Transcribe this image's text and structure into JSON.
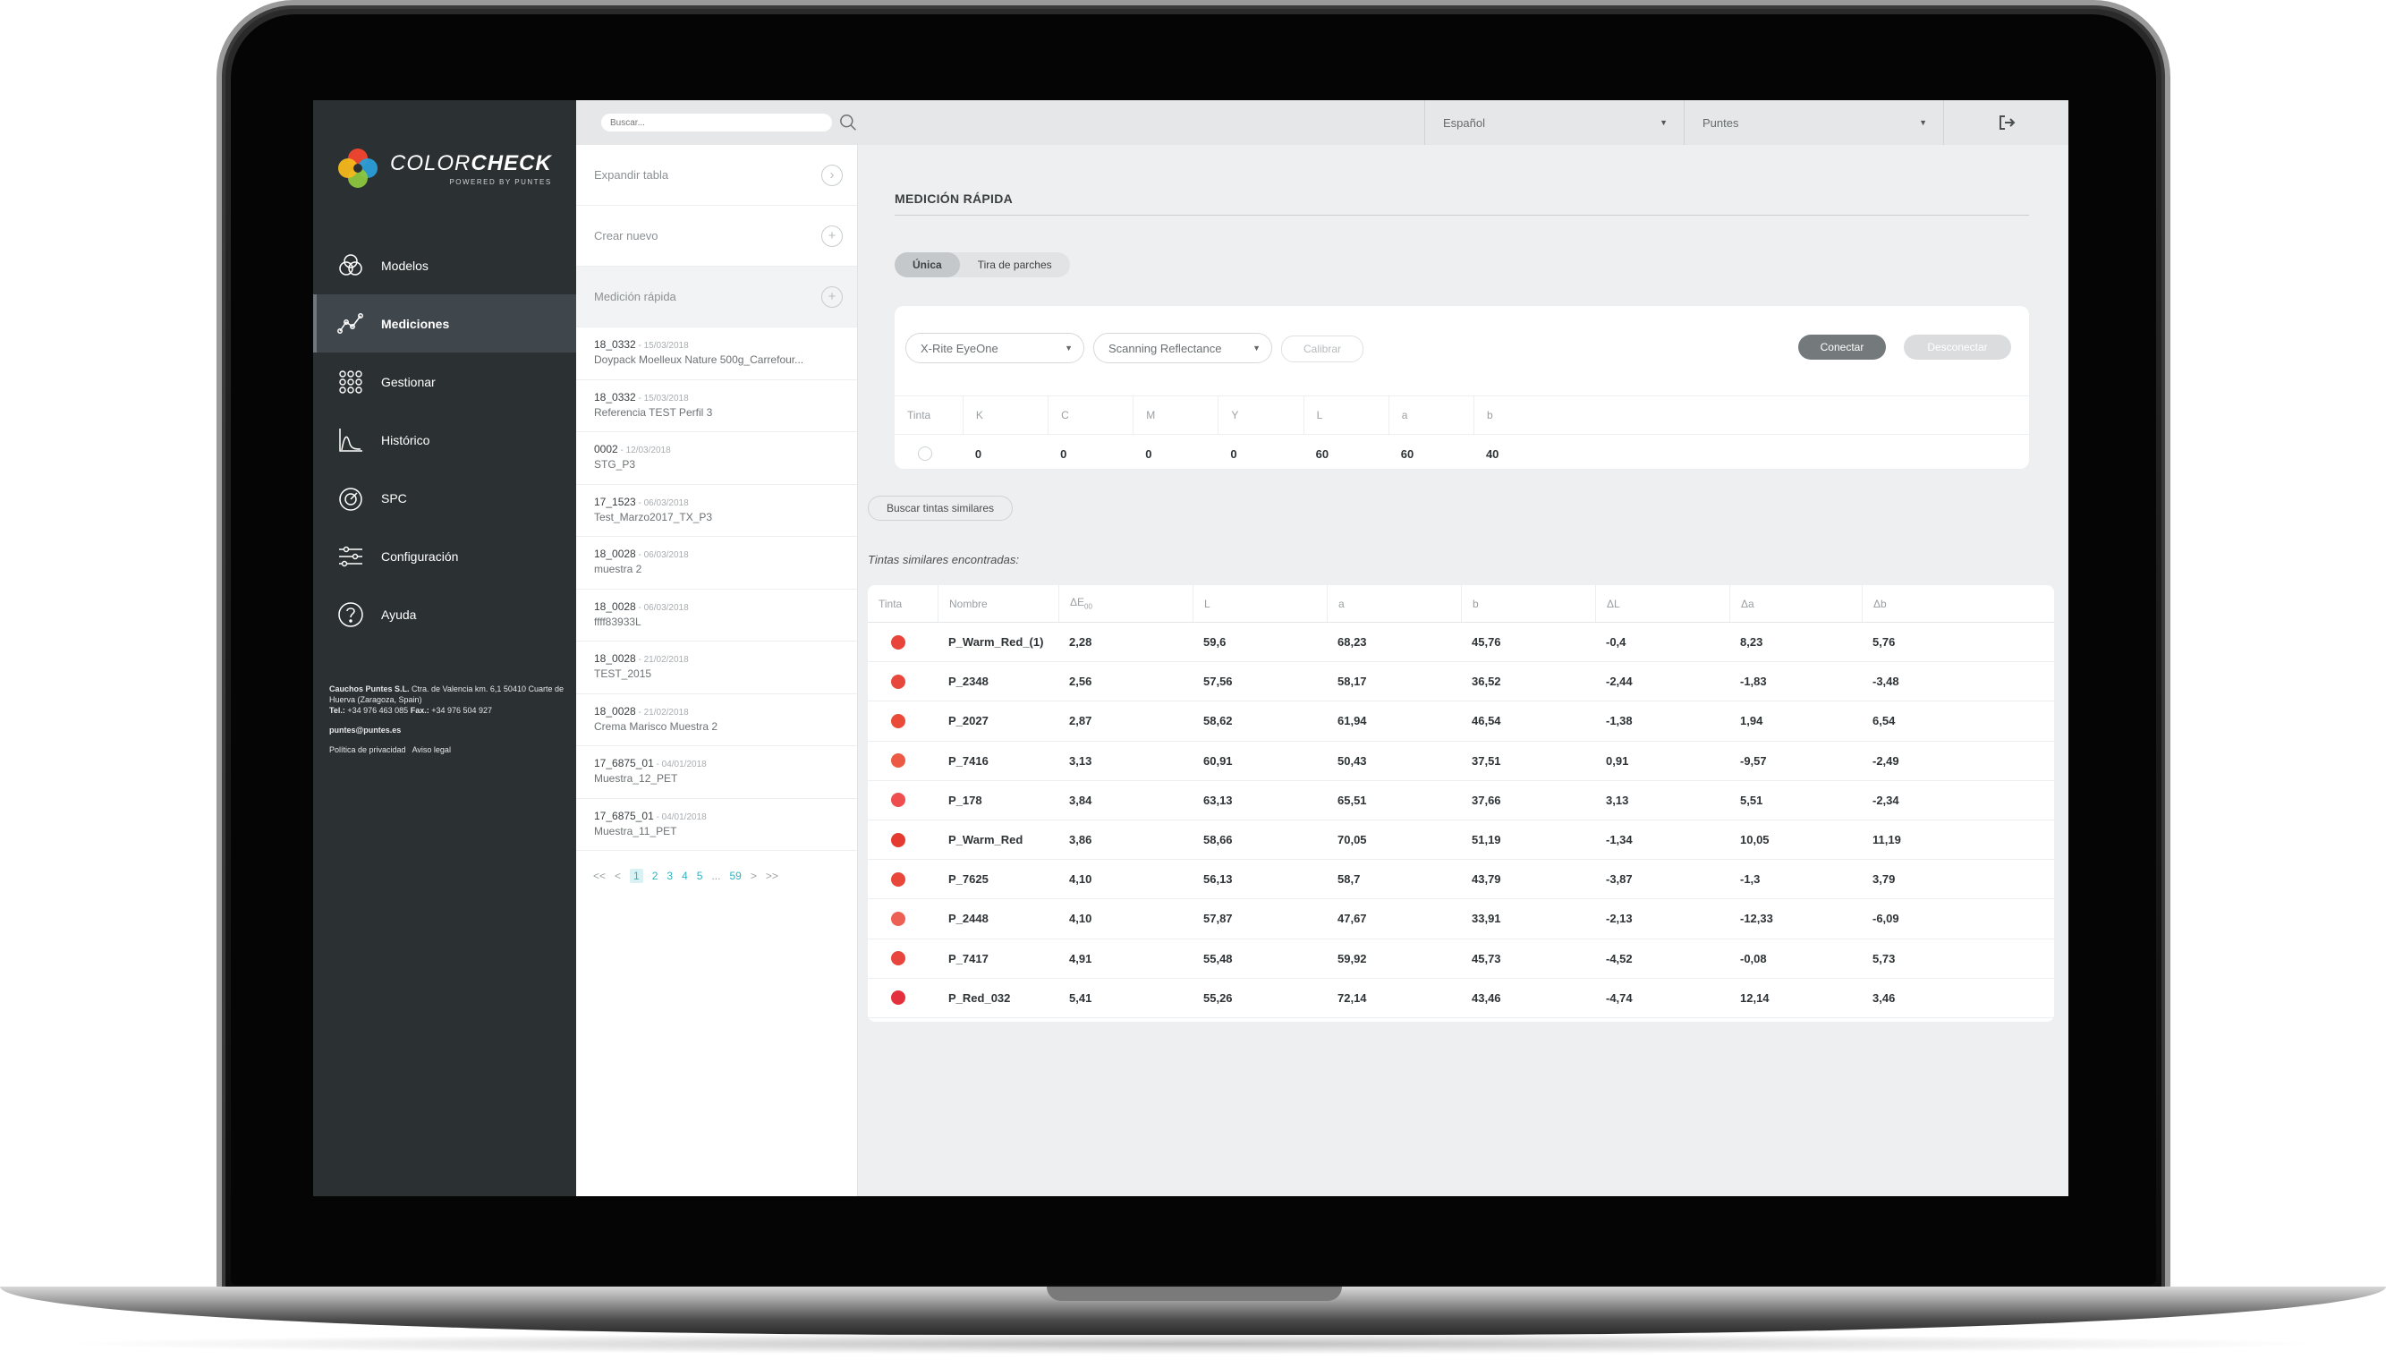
{
  "app": {
    "brand_light": "COLOR",
    "brand_bold": "CHECK",
    "brand_sub": "POWERED BY PUNTES"
  },
  "sidebar": {
    "items": [
      {
        "label": "Modelos",
        "icon": "models-icon",
        "active": false
      },
      {
        "label": "Mediciones",
        "icon": "measurements-icon",
        "active": true
      },
      {
        "label": "Gestionar",
        "icon": "grid-icon",
        "active": false
      },
      {
        "label": "Histórico",
        "icon": "chart-icon",
        "active": false
      },
      {
        "label": "SPC",
        "icon": "gauge-icon",
        "active": false
      },
      {
        "label": "Configuración",
        "icon": "sliders-icon",
        "active": false
      },
      {
        "label": "Ayuda",
        "icon": "help-icon",
        "active": false
      }
    ],
    "company": {
      "address_bold": "Cauchos Puntes S.L.",
      "address": "Ctra. de Valencia km. 6,1 50410 Cuarte de Huerva (Zaragoza, Spain)",
      "phone_bold": "Tel.:",
      "phone": "+34 976 463 085",
      "fax_bold": "Fax.:",
      "fax": "+34 976 504 927",
      "email": "puntes@puntes.es",
      "privacy": "Política de privacidad",
      "legal": "Aviso legal"
    }
  },
  "list": {
    "search_placeholder": "Buscar...",
    "expand_label": "Expandir tabla",
    "create_label": "Crear nuevo",
    "quick_label": "Medición rápida",
    "measurements": [
      {
        "code": "18_0332",
        "date": "15/03/2018",
        "name": "Doypack Moelleux Nature 500g_Carrefour..."
      },
      {
        "code": "18_0332",
        "date": "15/03/2018",
        "name": "Referencia TEST Perfil 3"
      },
      {
        "code": "0002",
        "date": "12/03/2018",
        "name": "STG_P3"
      },
      {
        "code": "17_1523",
        "date": "06/03/2018",
        "name": "Test_Marzo2017_TX_P3"
      },
      {
        "code": "18_0028",
        "date": "06/03/2018",
        "name": "muestra 2"
      },
      {
        "code": "18_0028",
        "date": "06/03/2018",
        "name": "ffff83933L"
      },
      {
        "code": "18_0028",
        "date": "21/02/2018",
        "name": "TEST_2015"
      },
      {
        "code": "18_0028",
        "date": "21/02/2018",
        "name": "Crema Marisco Muestra 2"
      },
      {
        "code": "17_6875_01",
        "date": "04/01/2018",
        "name": "Muestra_12_PET"
      },
      {
        "code": "17_6875_01",
        "date": "04/01/2018",
        "name": "Muestra_11_PET"
      }
    ],
    "pager": {
      "first": "<<",
      "prev": "<",
      "pages": [
        "1",
        "2",
        "3",
        "4",
        "5"
      ],
      "ellipsis": "...",
      "last_page": "59",
      "next": ">",
      "last": ">>"
    }
  },
  "topbar": {
    "language": "Español",
    "company": "Puntes",
    "logout_icon": "logout-icon"
  },
  "main": {
    "title": "MEDICIÓN RÁPIDA",
    "tabs": [
      "Única",
      "Tira de parches"
    ],
    "device": "X-Rite EyeOne",
    "mode": "Scanning Reflectance",
    "calibrate": "Calibrar",
    "connect": "Conectar",
    "disconnect": "Desconectar",
    "ink_headers": [
      "Tinta",
      "K",
      "C",
      "M",
      "Y",
      "L",
      "a",
      "b"
    ],
    "ink_values": [
      "",
      "0",
      "0",
      "0",
      "0",
      "60",
      "60",
      "40"
    ],
    "search_button": "Buscar tintas similares",
    "found_label": "Tintas similares encontradas:",
    "result_headers": [
      "Tinta",
      "Nombre",
      "ΔE00",
      "L",
      "a",
      "b",
      "ΔL",
      "Δa",
      "Δb"
    ],
    "results": [
      {
        "color": "#e8443a",
        "name": "P_Warm_Red_(1)",
        "de": "2,28",
        "L": "59,6",
        "a": "68,23",
        "b": "45,76",
        "dL": "-0,4",
        "da": "8,23",
        "db": "5,76"
      },
      {
        "color": "#e8473c",
        "name": "P_2348",
        "de": "2,56",
        "L": "57,56",
        "a": "58,17",
        "b": "36,52",
        "dL": "-2,44",
        "da": "-1,83",
        "db": "-3,48"
      },
      {
        "color": "#ea4a38",
        "name": "P_2027",
        "de": "2,87",
        "L": "58,62",
        "a": "61,94",
        "b": "46,54",
        "dL": "-1,38",
        "da": "1,94",
        "db": "6,54"
      },
      {
        "color": "#ec5a46",
        "name": "P_7416",
        "de": "3,13",
        "L": "60,91",
        "a": "50,43",
        "b": "37,51",
        "dL": "0,91",
        "da": "-9,57",
        "db": "-2,49"
      },
      {
        "color": "#ee4e50",
        "name": "P_178",
        "de": "3,84",
        "L": "63,13",
        "a": "65,51",
        "b": "37,66",
        "dL": "3,13",
        "da": "5,51",
        "db": "-2,34"
      },
      {
        "color": "#e53a30",
        "name": "P_Warm_Red",
        "de": "3,86",
        "L": "58,66",
        "a": "70,05",
        "b": "51,19",
        "dL": "-1,34",
        "da": "10,05",
        "db": "11,19"
      },
      {
        "color": "#e8473a",
        "name": "P_7625",
        "de": "4,10",
        "L": "56,13",
        "a": "58,7",
        "b": "43,79",
        "dL": "-3,87",
        "da": "-1,3",
        "db": "3,79"
      },
      {
        "color": "#ed6155",
        "name": "P_2448",
        "de": "4,10",
        "L": "57,87",
        "a": "47,67",
        "b": "33,91",
        "dL": "-2,13",
        "da": "-12,33",
        "db": "-6,09"
      },
      {
        "color": "#e8463c",
        "name": "P_7417",
        "de": "4,91",
        "L": "55,48",
        "a": "59,92",
        "b": "45,73",
        "dL": "-4,52",
        "da": "-0,08",
        "db": "5,73"
      },
      {
        "color": "#e42f3c",
        "name": "P_Red_032",
        "de": "5,41",
        "L": "55,26",
        "a": "72,14",
        "b": "43,46",
        "dL": "-4,74",
        "da": "12,14",
        "db": "3,46"
      }
    ]
  }
}
